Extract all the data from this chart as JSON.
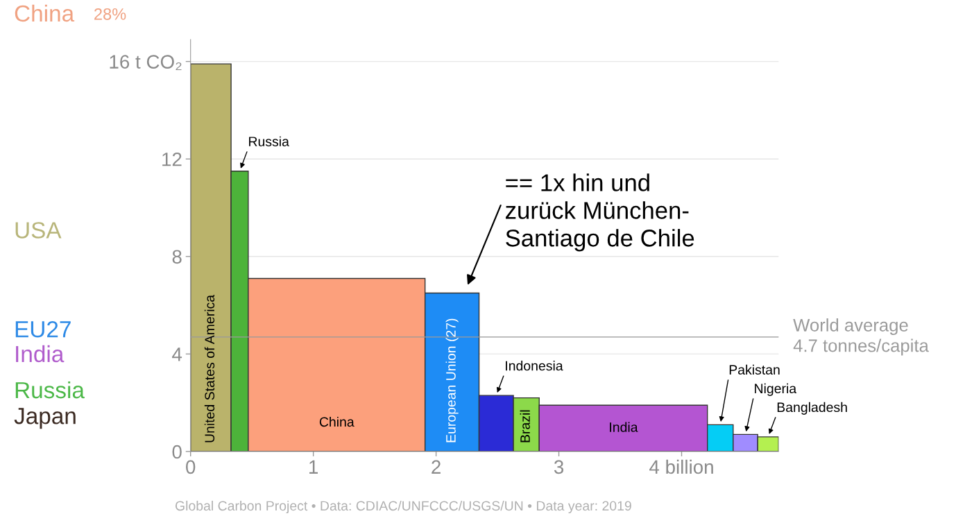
{
  "chart_data": [
    {
      "type": "other",
      "categories": [
        "China",
        "USA",
        "EU27",
        "India",
        "Russia",
        "Japan"
      ],
      "colors": [
        "#f0a282",
        "#b8b57a",
        "#2e8ae6",
        "#b05ccc",
        "#4cb848",
        "#3b2a22"
      ],
      "values": [
        28,
        null,
        null,
        null,
        null,
        null
      ],
      "value_labels": [
        "28%",
        null,
        null,
        null,
        null,
        null
      ]
    },
    {
      "type": "histogram",
      "bins": [
        0,
        0.33,
        0.47,
        1.91,
        2.35,
        2.63,
        2.84,
        4.21,
        4.42,
        4.62,
        4.79
      ],
      "values": [
        15.9,
        11.5,
        7.1,
        6.5,
        2.3,
        2.2,
        1.9,
        1.1,
        0.7,
        0.6
      ],
      "categories": [
        "United States of America",
        "Russia",
        "China",
        "European Union (27)",
        "Indonesia",
        "Brazil",
        "India",
        "Pakistan",
        "Nigeria",
        "Bangladesh"
      ],
      "colors": [
        "#bab36b",
        "#4db33a",
        "#fca07c",
        "#1e8cf5",
        "#2b2bd6",
        "#8cd94a",
        "#b455d2",
        "#05cdf5",
        "#a08cff",
        "#b4f050"
      ],
      "xlim": [
        0,
        4.79
      ],
      "xticks": [
        0,
        1,
        2,
        3,
        {
          "value": 4,
          "label": "4 billion"
        }
      ],
      "ylim": [
        0,
        16.9
      ],
      "yticks": [
        0,
        4,
        8,
        12,
        {
          "value": 16,
          "label": "16 t CO₂"
        }
      ],
      "grid": "y",
      "ref_lines": [
        {
          "axis": "y",
          "value": 4.7,
          "label": "World average\n4.7 tonnes/capita",
          "color": "#9a9a9a"
        }
      ],
      "annotations": [
        {
          "text": "== 1x hin und\nzurück München-\nSantiago de Chile",
          "x": 2.23,
          "y": 6.5
        },
        "Global Carbon Project • Data: CDIAC/UNFCCC/USGS/UN • Data year: 2019"
      ]
    }
  ]
}
